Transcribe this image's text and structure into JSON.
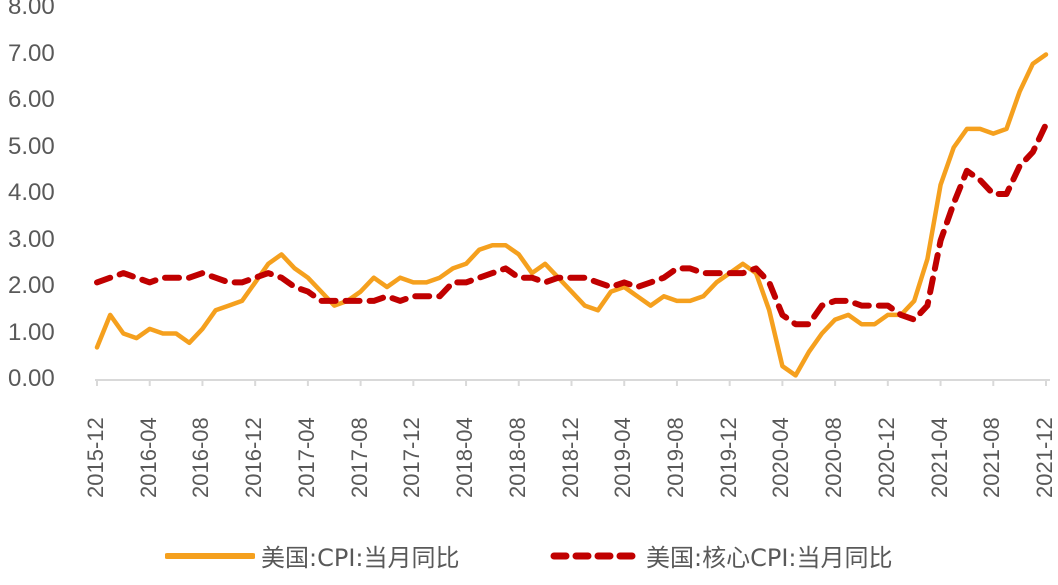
{
  "chart_data": {
    "type": "line",
    "title": "",
    "xlabel": "",
    "ylabel": "",
    "ylim": [
      0,
      8
    ],
    "yticks": [
      "0.00",
      "1.00",
      "2.00",
      "3.00",
      "4.00",
      "5.00",
      "6.00",
      "7.00",
      "8.00"
    ],
    "xtick_labels": [
      "2015-12",
      "2016-04",
      "2016-08",
      "2016-12",
      "2017-04",
      "2017-08",
      "2017-12",
      "2018-04",
      "2018-08",
      "2018-12",
      "2019-04",
      "2019-08",
      "2019-12",
      "2020-04",
      "2020-08",
      "2020-12",
      "2021-04",
      "2021-08",
      "2021-12"
    ],
    "grid": false,
    "legend_position": "bottom",
    "x": [
      "2015-12",
      "2016-01",
      "2016-02",
      "2016-03",
      "2016-04",
      "2016-05",
      "2016-06",
      "2016-07",
      "2016-08",
      "2016-09",
      "2016-10",
      "2016-11",
      "2016-12",
      "2017-01",
      "2017-02",
      "2017-03",
      "2017-04",
      "2017-05",
      "2017-06",
      "2017-07",
      "2017-08",
      "2017-09",
      "2017-10",
      "2017-11",
      "2017-12",
      "2018-01",
      "2018-02",
      "2018-03",
      "2018-04",
      "2018-05",
      "2018-06",
      "2018-07",
      "2018-08",
      "2018-09",
      "2018-10",
      "2018-11",
      "2018-12",
      "2019-01",
      "2019-02",
      "2019-03",
      "2019-04",
      "2019-05",
      "2019-06",
      "2019-07",
      "2019-08",
      "2019-09",
      "2019-10",
      "2019-11",
      "2019-12",
      "2020-01",
      "2020-02",
      "2020-03",
      "2020-04",
      "2020-05",
      "2020-06",
      "2020-07",
      "2020-08",
      "2020-09",
      "2020-10",
      "2020-11",
      "2020-12",
      "2021-01",
      "2021-02",
      "2021-03",
      "2021-04",
      "2021-05",
      "2021-06",
      "2021-07",
      "2021-08",
      "2021-09",
      "2021-10",
      "2021-11",
      "2021-12"
    ],
    "series": [
      {
        "name": "美国:CPI:当月同比",
        "color": "#F5A01E",
        "style": "solid",
        "values": [
          0.7,
          1.4,
          1.0,
          0.9,
          1.1,
          1.0,
          1.0,
          0.8,
          1.1,
          1.5,
          1.6,
          1.7,
          2.1,
          2.5,
          2.7,
          2.4,
          2.2,
          1.9,
          1.6,
          1.7,
          1.9,
          2.2,
          2.0,
          2.2,
          2.1,
          2.1,
          2.2,
          2.4,
          2.5,
          2.8,
          2.9,
          2.9,
          2.7,
          2.3,
          2.5,
          2.2,
          1.9,
          1.6,
          1.5,
          1.9,
          2.0,
          1.8,
          1.6,
          1.8,
          1.7,
          1.7,
          1.8,
          2.1,
          2.3,
          2.5,
          2.3,
          1.5,
          0.3,
          0.1,
          0.6,
          1.0,
          1.3,
          1.4,
          1.2,
          1.2,
          1.4,
          1.4,
          1.7,
          2.6,
          4.2,
          5.0,
          5.4,
          5.4,
          5.3,
          5.4,
          6.2,
          6.8,
          7.0
        ]
      },
      {
        "name": "美国:核心CPI:当月同比",
        "color": "#C00000",
        "style": "dashed",
        "values": [
          2.1,
          2.2,
          2.3,
          2.2,
          2.1,
          2.2,
          2.2,
          2.2,
          2.3,
          2.2,
          2.1,
          2.1,
          2.2,
          2.3,
          2.2,
          2.0,
          1.9,
          1.7,
          1.7,
          1.7,
          1.7,
          1.7,
          1.8,
          1.7,
          1.8,
          1.8,
          1.8,
          2.1,
          2.1,
          2.2,
          2.3,
          2.4,
          2.2,
          2.2,
          2.1,
          2.2,
          2.2,
          2.2,
          2.1,
          2.0,
          2.1,
          2.0,
          2.1,
          2.2,
          2.4,
          2.4,
          2.3,
          2.3,
          2.3,
          2.3,
          2.4,
          2.1,
          1.4,
          1.2,
          1.2,
          1.6,
          1.7,
          1.7,
          1.6,
          1.6,
          1.6,
          1.4,
          1.3,
          1.6,
          3.0,
          3.8,
          4.5,
          4.3,
          4.0,
          4.0,
          4.6,
          4.9,
          5.5
        ]
      }
    ]
  },
  "legend": {
    "items": [
      {
        "label": "美国:CPI:当月同比"
      },
      {
        "label": "美国:核心CPI:当月同比"
      }
    ]
  },
  "axis_color": "#D9D9D9"
}
